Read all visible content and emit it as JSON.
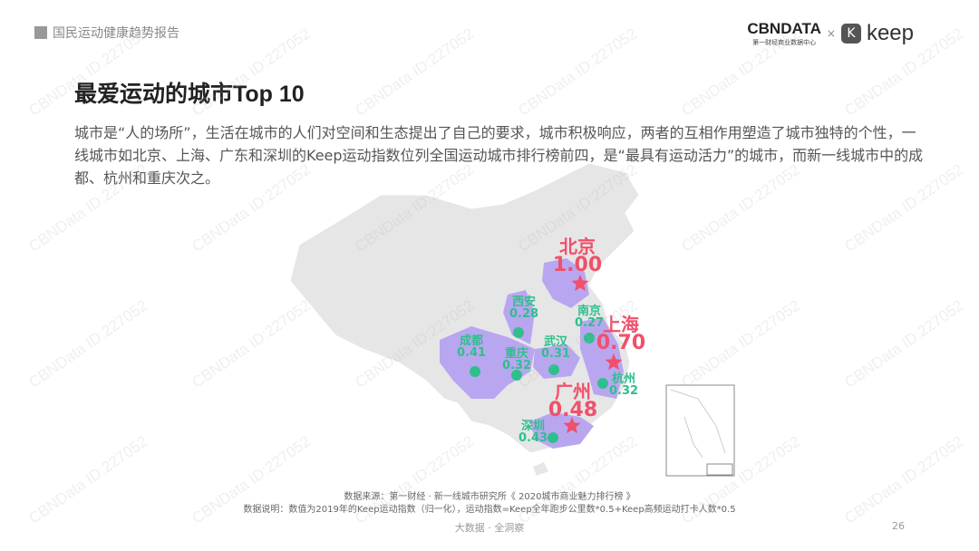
{
  "header": {
    "section": "国民运动健康趋势报告",
    "logo_cbn": "CBNDATA",
    "logo_cbn_sub": "第一财经商业数据中心",
    "logo_x": "×",
    "logo_keep": "keep"
  },
  "title": "最爱运动的城市Top 10",
  "paragraph": "城市是“人的场所”，生活在城市的人们对空间和生态提出了自己的要求，城市积极响应，两者的互相作用塑造了城市独特的个性，一线城市如北京、上海、广东和深圳的Keep运动指数位列全国运动城市排行榜前四，是“最具有运动活力”的城市，而新一线城市中的成都、杭州和重庆次之。",
  "colors": {
    "highlight": "#f0506a",
    "secondary": "#2fbf8c",
    "province": "#b9a6f0",
    "map": "#e6e6e6"
  },
  "cities": [
    {
      "name": "北京",
      "value": "1.00",
      "tier": "top",
      "marker": "star"
    },
    {
      "name": "上海",
      "value": "0.70",
      "tier": "top",
      "marker": "star"
    },
    {
      "name": "广州",
      "value": "0.48",
      "tier": "top",
      "marker": "star"
    },
    {
      "name": "深圳",
      "value": "0.43",
      "tier": "second",
      "marker": "dot"
    },
    {
      "name": "成都",
      "value": "0.41",
      "tier": "second",
      "marker": "dot"
    },
    {
      "name": "重庆",
      "value": "0.32",
      "tier": "second",
      "marker": "dot"
    },
    {
      "name": "杭州",
      "value": "0.32",
      "tier": "second",
      "marker": "dot"
    },
    {
      "name": "武汉",
      "value": "0.31",
      "tier": "second",
      "marker": "dot"
    },
    {
      "name": "西安",
      "value": "0.28",
      "tier": "second",
      "marker": "dot"
    },
    {
      "name": "南京",
      "value": "0.27",
      "tier": "second",
      "marker": "dot"
    }
  ],
  "source": "数据来源：第一财经 · 新一线城市研究所《 2020城市商业魅力排行榜 》",
  "note": "数据说明：数值为2019年的Keep运动指数（归一化），运动指数=Keep全年跑步公里数*0.5+Keep高频运动打卡人数*0.5",
  "footer": "大数据 · 全洞察",
  "page": "26",
  "watermark": "CBNData ID:227052"
}
